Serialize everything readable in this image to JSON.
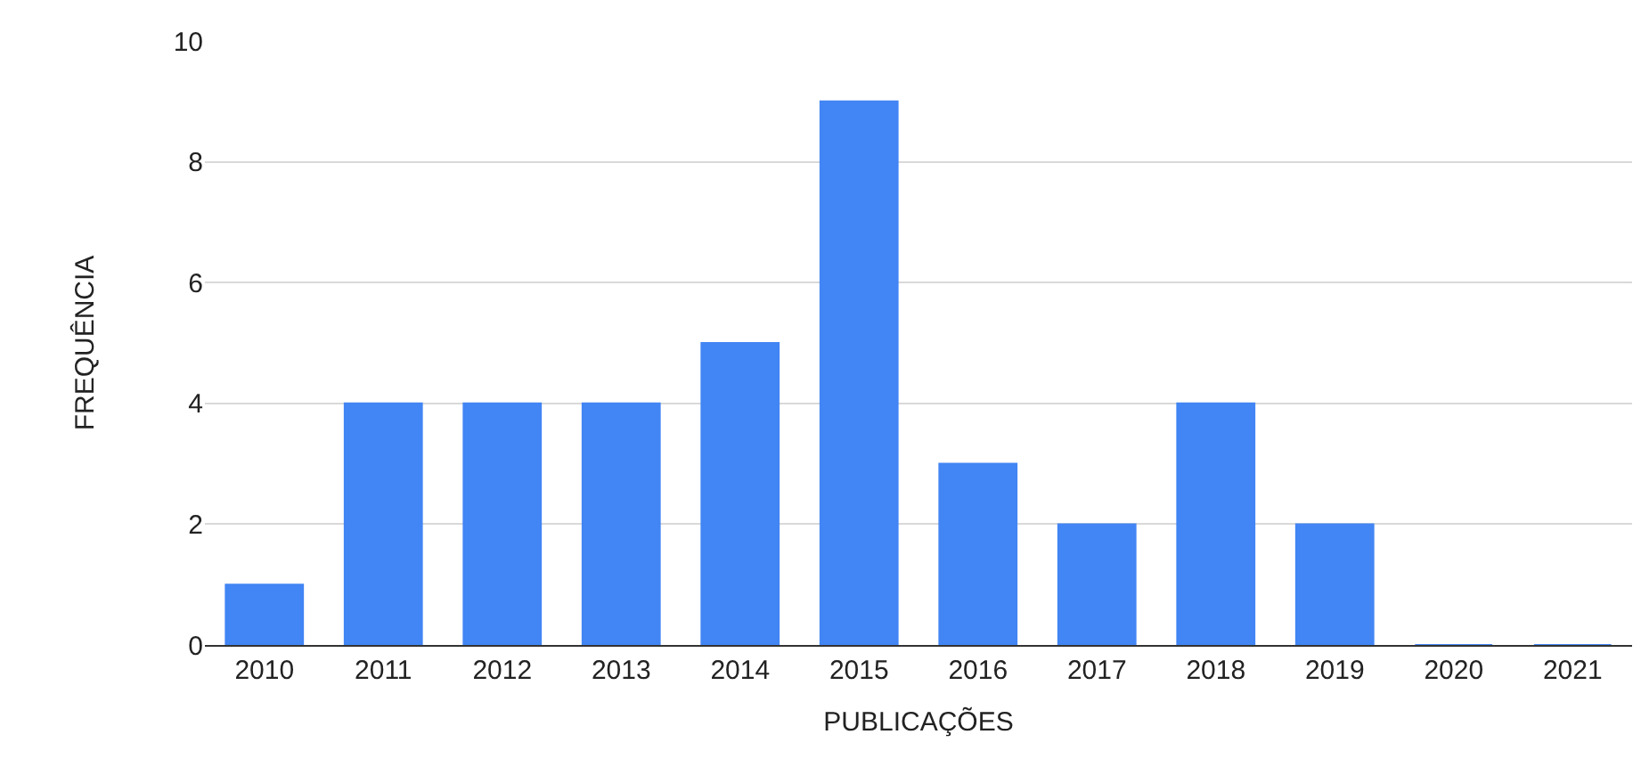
{
  "chart_data": {
    "type": "bar",
    "xlabel": "PUBLICAÇÕES",
    "ylabel": "FREQUÊNCIA",
    "categories": [
      "2010",
      "2011",
      "2012",
      "2013",
      "2014",
      "2015",
      "2016",
      "2017",
      "2018",
      "2019",
      "2020",
      "2021"
    ],
    "values": [
      1,
      4,
      4,
      4,
      5,
      9,
      3,
      2,
      4,
      2,
      0,
      0
    ],
    "color": "#4285f4",
    "ylim": [
      0,
      10
    ],
    "yticks": [
      0,
      2,
      4,
      6,
      8,
      10
    ],
    "grid": "y"
  }
}
